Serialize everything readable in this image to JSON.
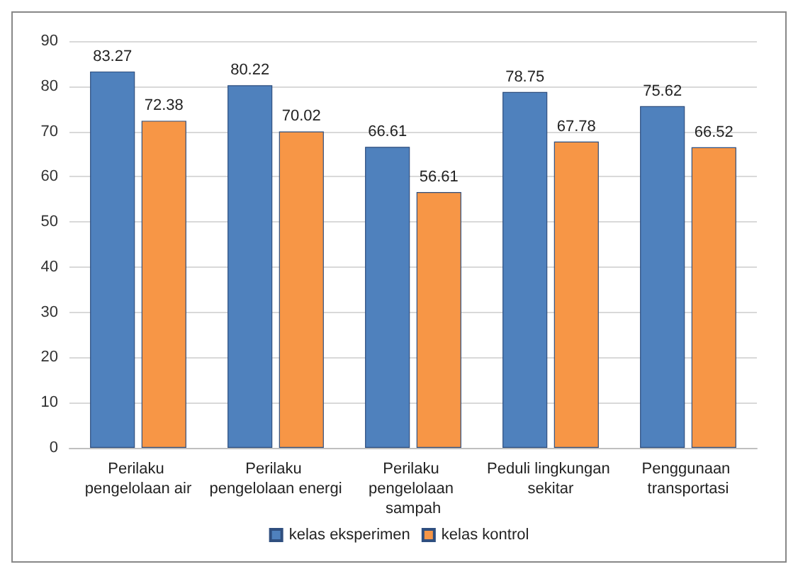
{
  "chart_data": {
    "type": "bar",
    "categories": [
      "Perilaku pengelolaan air",
      "Perilaku pengelolaan energi",
      "Perilaku pengelolaan sampah",
      "Peduli lingkungan sekitar",
      "Penggunaan transportasi"
    ],
    "series": [
      {
        "name": "kelas eksperimen",
        "color": "#4f81bd",
        "values": [
          83.27,
          80.22,
          66.61,
          78.75,
          75.62
        ]
      },
      {
        "name": "kelas kontrol",
        "color": "#f79646",
        "values": [
          72.38,
          70.02,
          56.61,
          67.78,
          66.52
        ]
      }
    ],
    "ylim": [
      0,
      90
    ],
    "yticks": [
      0,
      10,
      20,
      30,
      40,
      50,
      60,
      70,
      80,
      90
    ],
    "grid": "y",
    "legend": "bottom",
    "data_labels": true
  }
}
